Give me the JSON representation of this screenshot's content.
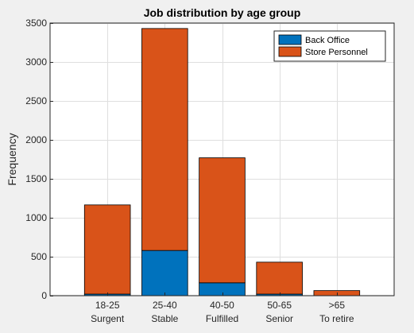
{
  "chart_data": {
    "type": "bar",
    "stacked": true,
    "title": "Job distribution by age group",
    "xlabel": "",
    "ylabel": "Frequency",
    "categories": [
      [
        "18-25",
        "Surgent"
      ],
      [
        "25-40",
        "Stable"
      ],
      [
        "40-50",
        "Fulfilled"
      ],
      [
        "50-65",
        "Senior"
      ],
      [
        ">65",
        "To retire"
      ]
    ],
    "series": [
      {
        "name": "Back Office",
        "color": "#0072bd",
        "values": [
          20,
          580,
          165,
          20,
          0
        ]
      },
      {
        "name": "Store Personnel",
        "color": "#d95319",
        "values": [
          1145,
          2850,
          1605,
          410,
          65
        ]
      }
    ],
    "ylim": [
      0,
      3500
    ],
    "yticks": [
      0,
      500,
      1000,
      1500,
      2000,
      2500,
      3000,
      3500
    ],
    "xlim": [
      0,
      6
    ],
    "grid": true,
    "legend": "top-right"
  }
}
